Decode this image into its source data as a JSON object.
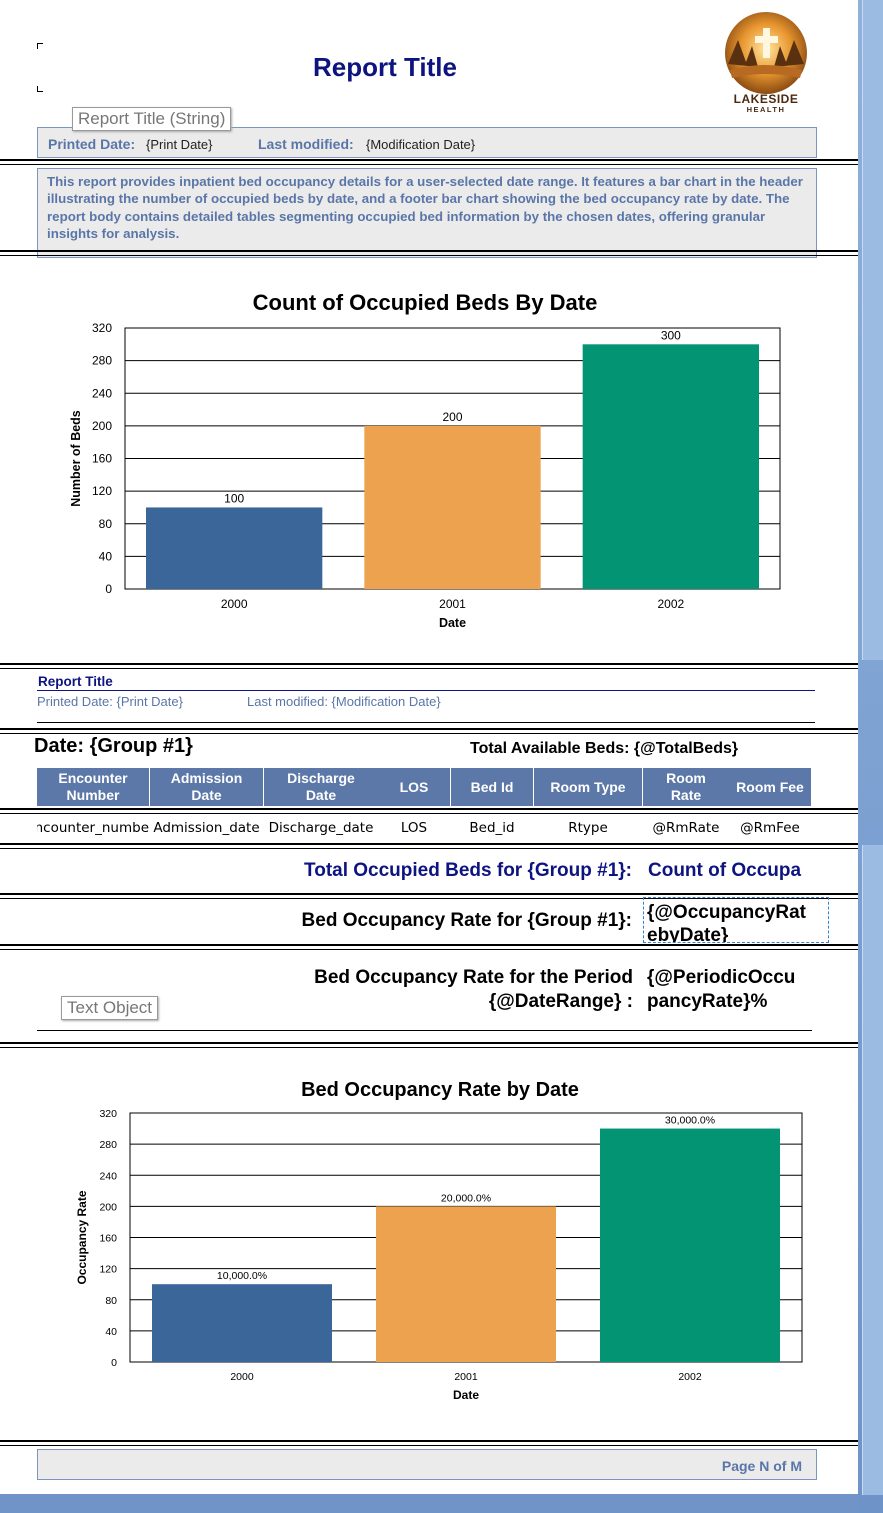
{
  "header": {
    "report_title": "Report Title",
    "tooltip_report_title": "Report Title (String)",
    "printed_date_label": "Printed Date:",
    "print_date_value": "{Print Date}",
    "last_modified_label": "Last modified:",
    "modification_date_value": "{Modification Date}",
    "description": "This report provides inpatient bed occupancy details for a user-selected date range. It features a bar chart in the header illustrating the number of occupied beds by date, and a footer bar chart showing the bed occupancy rate by date. The report body contains detailed tables segmenting occupied bed information by the chosen dates, offering granular insights for analysis."
  },
  "logo": {
    "line1": "LAKESIDE",
    "line2": "HEALTH"
  },
  "page_header": {
    "report_title": "Report Title",
    "printed_date": "Printed Date:  {Print Date}",
    "last_modified": "Last modified: {Modification Date}"
  },
  "group_header": {
    "date_label": "Date: {Group #1}",
    "total_beds": "Total Available Beds: {@TotalBeds}"
  },
  "table": {
    "columns": [
      [
        "Encounter",
        "Number"
      ],
      [
        "Admission",
        "Date"
      ],
      [
        "Discharge",
        "Date"
      ],
      [
        "LOS"
      ],
      [
        "Bed Id"
      ],
      [
        "Room Type"
      ],
      [
        "Room",
        "Rate"
      ],
      [
        "Room Fee"
      ]
    ],
    "row": [
      "Encounter_numbe",
      "Admission_date",
      "Discharge_date",
      "LOS",
      "Bed_id",
      "Rtype",
      "@RmRate",
      "@RmFee"
    ]
  },
  "group_footer": {
    "total_occupied_label": "Total Occupied Beds for {Group #1}:",
    "total_occupied_value": "Count of Occupa",
    "rate_label": "Bed Occupancy Rate for {Group #1}:",
    "rate_value_line1": "{@OccupancyRat",
    "rate_value_line2": "ebyDate}"
  },
  "report_footer": {
    "period_label_line1": "Bed Occupancy Rate for the Period",
    "period_label_line2": "{@DateRange} :",
    "period_value_line1": "{@PeriodicOccu",
    "period_value_line2": "pancyRate}%",
    "tooltip_text_object": "Text Object"
  },
  "page_footer": {
    "page_n_of_m": "Page N of M"
  },
  "chart_data": [
    {
      "type": "bar",
      "title": "Count of Occupied Beds By Date",
      "xlabel": "Date",
      "ylabel": "Number of Beds",
      "categories": [
        "2000",
        "2001",
        "2002"
      ],
      "values": [
        100,
        200,
        300
      ],
      "data_labels": [
        "100",
        "200",
        "300"
      ],
      "yticks": [
        "0",
        "40",
        "80",
        "120",
        "160",
        "200",
        "240",
        "280",
        "320"
      ],
      "ylim": [
        0,
        320
      ],
      "colors": [
        "#3a6699",
        "#eda250",
        "#039474"
      ],
      "grid": true
    },
    {
      "type": "bar",
      "title": "Bed Occupancy Rate by Date",
      "xlabel": "Date",
      "ylabel": "Occupancy Rate",
      "categories": [
        "2000",
        "2001",
        "2002"
      ],
      "values": [
        100,
        200,
        300
      ],
      "data_labels": [
        "10,000.0%",
        "20,000.0%",
        "30,000.0%"
      ],
      "yticks": [
        "0",
        "40",
        "80",
        "120",
        "160",
        "200",
        "240",
        "280",
        "320"
      ],
      "ylim": [
        0,
        320
      ],
      "colors": [
        "#3a6699",
        "#eda250",
        "#039474"
      ],
      "grid": true
    }
  ]
}
